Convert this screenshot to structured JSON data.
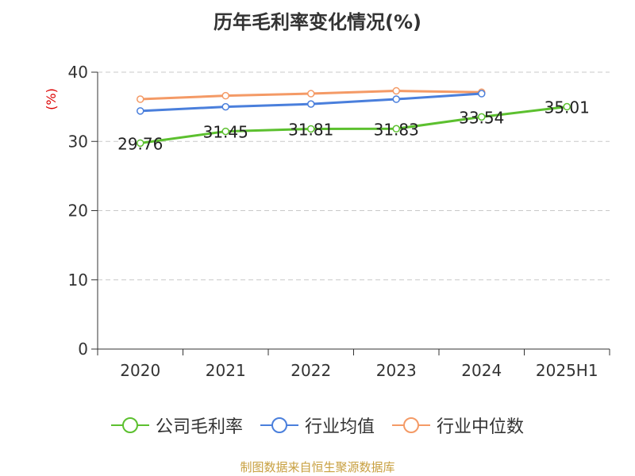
{
  "chart_data": {
    "type": "line",
    "title": "历年毛利率变化情况(%)",
    "ylabel": "(%)",
    "categories": [
      "2020",
      "2021",
      "2022",
      "2023",
      "2024",
      "2025H1"
    ],
    "ylim": [
      0,
      40
    ],
    "yticks": [
      0,
      10,
      20,
      30,
      40
    ],
    "grid": true,
    "legend_position": "bottom",
    "series": [
      {
        "name": "公司毛利率",
        "color": "#5cc02f",
        "values": [
          29.76,
          31.45,
          31.81,
          31.83,
          33.54,
          35.01
        ],
        "show_labels": true
      },
      {
        "name": "行业均值",
        "color": "#4a7fdc",
        "values": [
          34.4,
          35.0,
          35.4,
          36.1,
          36.9,
          null
        ],
        "show_labels": false
      },
      {
        "name": "行业中位数",
        "color": "#f49a66",
        "values": [
          36.1,
          36.6,
          36.9,
          37.3,
          37.1,
          null
        ],
        "show_labels": false
      }
    ]
  },
  "source_note": "制图数据来自恒生聚源数据库"
}
